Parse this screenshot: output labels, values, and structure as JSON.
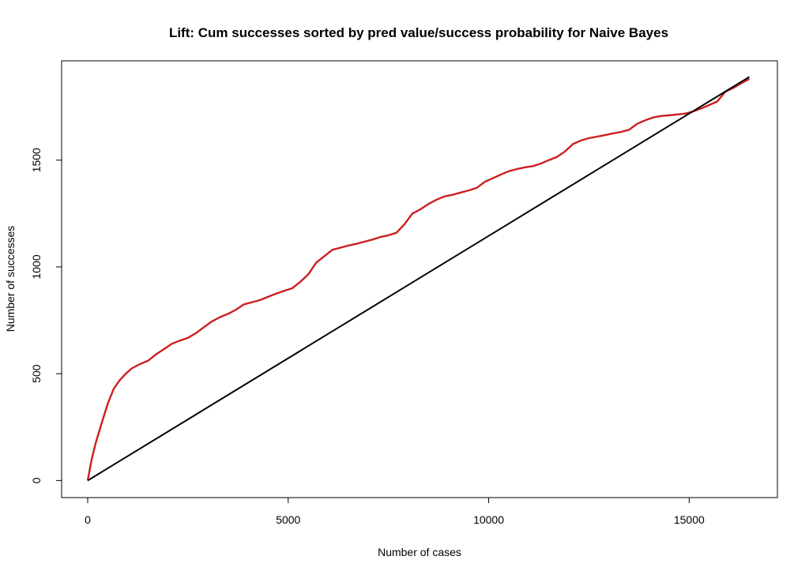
{
  "chart_data": {
    "type": "line",
    "title": "Lift: Cum successes sorted by pred value/success probability for Naive Bayes",
    "xlabel": "Number of cases",
    "ylabel": "Number of successes",
    "xlim": [
      -650,
      17200
    ],
    "ylim": [
      -80,
      1965
    ],
    "x_ticks": [
      0,
      5000,
      10000,
      15000
    ],
    "x_tick_labels": [
      "0",
      "5000",
      "10000",
      "15000"
    ],
    "y_ticks": [
      0,
      500,
      1000,
      1500
    ],
    "y_tick_labels": [
      "0",
      "500",
      "1000",
      "1500"
    ],
    "grid": false,
    "legend": "none",
    "series": [
      {
        "color": "#cc1f1f",
        "x": [
          0,
          100,
          200,
          350,
          500,
          650,
          800,
          950,
          1100,
          1300,
          1500,
          1700,
          1900,
          2100,
          2300,
          2500,
          2700,
          2900,
          3100,
          3300,
          3500,
          3700,
          3900,
          4100,
          4300,
          4500,
          4700,
          4900,
          5100,
          5300,
          5500,
          5700,
          5900,
          6100,
          6300,
          6500,
          6700,
          6900,
          7100,
          7300,
          7500,
          7700,
          7900,
          8100,
          8300,
          8500,
          8700,
          8900,
          9100,
          9300,
          9500,
          9700,
          9900,
          10100,
          10300,
          10500,
          10700,
          10900,
          11100,
          11300,
          11500,
          11700,
          11900,
          12100,
          12300,
          12500,
          12700,
          12900,
          13100,
          13300,
          13500,
          13700,
          13900,
          14100,
          14300,
          14500,
          14700,
          14900,
          15100,
          15300,
          15500,
          15700,
          15900,
          16100,
          16300,
          16500
        ],
        "y": [
          0,
          100,
          175,
          270,
          360,
          430,
          470,
          500,
          525,
          545,
          560,
          590,
          615,
          640,
          655,
          668,
          690,
          718,
          745,
          765,
          780,
          800,
          825,
          835,
          845,
          860,
          875,
          888,
          900,
          930,
          965,
          1020,
          1050,
          1080,
          1090,
          1100,
          1108,
          1118,
          1128,
          1140,
          1148,
          1160,
          1200,
          1250,
          1270,
          1295,
          1315,
          1330,
          1338,
          1348,
          1358,
          1370,
          1398,
          1415,
          1432,
          1448,
          1458,
          1466,
          1472,
          1484,
          1500,
          1515,
          1540,
          1575,
          1592,
          1603,
          1610,
          1617,
          1625,
          1632,
          1642,
          1670,
          1686,
          1700,
          1707,
          1710,
          1714,
          1718,
          1728,
          1742,
          1758,
          1775,
          1820,
          1838,
          1860,
          1880
        ]
      },
      {
        "color": "#000000",
        "x": [
          0,
          16500
        ],
        "y": [
          0,
          1890
        ]
      }
    ]
  }
}
